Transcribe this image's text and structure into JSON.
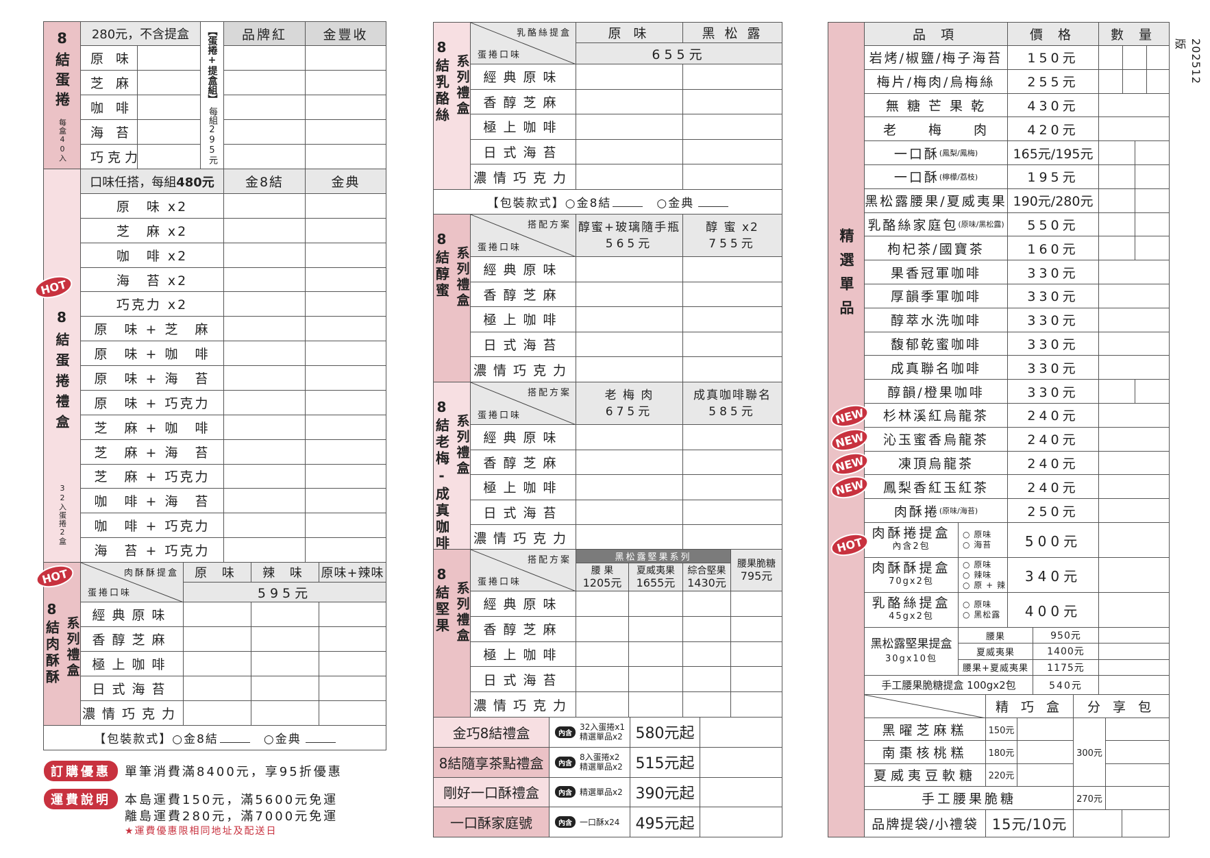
{
  "version": "202512版",
  "cookie_flavors": [
    "經典原味",
    "香醇芝麻",
    "極上咖啡",
    "日式海苔",
    "濃情巧克力"
  ],
  "packaging": {
    "label": "【包裝款式】",
    "option1": "○金8結",
    "option2": "○金典"
  },
  "left": {
    "egg_roll": {
      "label": "8結蛋捲",
      "label_sub": "每盒40入",
      "price_note": "280元，不含提盒",
      "set_label": "【蛋捲+提盒組】",
      "set_price": "每組295元",
      "columns": [
        "品牌紅",
        "金豐收"
      ],
      "flavors": [
        "原 味",
        "芝 麻",
        "咖 啡",
        "海 苔",
        "巧克力"
      ]
    },
    "gift_box": {
      "badge": "HOT",
      "label": "8結蛋捲禮盒",
      "label_sub": "32入蛋捲2盒",
      "header_text": "口味任搭，每組",
      "header_price": "480元",
      "columns": [
        "金8結",
        "金典"
      ],
      "combos": [
        "原　味 x2",
        "芝　麻 x2",
        "咖　啡 x2",
        "海　苔 x2",
        "巧克力 x2",
        "原　味 + 芝　麻",
        "原　味 + 咖　啡",
        "原　味 + 海　苔",
        "原　味 + 巧克力",
        "芝　麻 + 咖　啡",
        "芝　麻 + 海　苔",
        "芝　麻 + 巧克力",
        "咖　啡 + 海　苔",
        "咖　啡 + 巧克力",
        "海　苔 + 巧克力"
      ]
    },
    "meat_floss_series": {
      "badge": "HOT",
      "label": "8結肉酥酥",
      "label_series": "系列禮盒",
      "diag_top": "肉酥酥提盒",
      "diag_bottom": "蛋捲口味",
      "columns": [
        "原 味",
        "辣 味",
        "原味+辣味"
      ],
      "price": "595元"
    },
    "promos": [
      {
        "tag": "訂購優惠",
        "lines": [
          "單筆消費滿8400元，享95折優惠"
        ]
      },
      {
        "tag": "運費說明",
        "lines": [
          "本島運費150元，滿5600元免運",
          "離島運費280元，滿7000元免運"
        ]
      }
    ],
    "shipping_note": "★運費優惠限相同地址及配送日"
  },
  "middle": {
    "cheese": {
      "label": "8結乳酪絲",
      "label_series": "系列禮盒",
      "diag_top": "乳酪絲提盒",
      "diag_bottom": "蛋捲口味",
      "columns": [
        "原 味",
        "黑 松 露"
      ],
      "price": "655元"
    },
    "honey": {
      "label": "8結醇蜜",
      "label_series": "系列禮盒",
      "diag_top": "搭配方案",
      "diag_bottom": "蛋捲口味",
      "columns": [
        {
          "name": "醇蜜+玻璃隨手瓶",
          "price": "565元"
        },
        {
          "name": "醇 蜜 x2",
          "price": "755元"
        }
      ]
    },
    "plum_coffee": {
      "label": "8結老梅-成真咖啡",
      "label_series": "系列禮盒",
      "diag_top": "搭配方案",
      "diag_bottom": "蛋捲口味",
      "columns": [
        {
          "name": "老 梅 肉",
          "price": "675元"
        },
        {
          "name": "成真咖啡聯名",
          "price": "585元"
        }
      ]
    },
    "nut": {
      "label": "8結堅果",
      "label_series": "系列禮盒",
      "diag_top": "搭配方案",
      "diag_bottom": "蛋捲口味",
      "group": "黑松露堅果系列",
      "columns": [
        {
          "name": "腰 果",
          "price": "1205元"
        },
        {
          "name": "夏威夷果",
          "price": "1655元"
        },
        {
          "name": "綜合堅果",
          "price": "1430元"
        },
        {
          "name": "腰果脆糖",
          "price": "795元"
        }
      ]
    },
    "gift_sets": [
      {
        "name": "金巧8結禮盒",
        "tag": "內含",
        "contents": [
          "32入蛋捲x1",
          "精選單品x2"
        ],
        "price": "580元起"
      },
      {
        "name": "8結隨享茶點禮盒",
        "tag": "內含",
        "contents": [
          "8入蛋捲x2",
          "精選單品x2"
        ],
        "price": "515元起"
      },
      {
        "name": "剛好一口酥禮盒",
        "tag": "內含",
        "contents": [
          "精選單品x2"
        ],
        "price": "390元起"
      },
      {
        "name": "一口酥家庭號",
        "tag": "內含",
        "contents": [
          "一口酥x24"
        ],
        "price": "495元起"
      }
    ]
  },
  "right": {
    "label": "精選單品",
    "headers": [
      "品 項",
      "價 格",
      "數 量"
    ],
    "items": [
      {
        "name": "岩烤/椒鹽/梅子海苔",
        "price": "150元"
      },
      {
        "name": "梅片/梅肉/烏梅絲",
        "price": "255元"
      },
      {
        "name": "無 糖 芒 果 乾",
        "price": "430元"
      },
      {
        "name": "老　　梅　　肉",
        "price": "420元"
      },
      {
        "name": "一口酥",
        "note": "(鳳梨/鳳梅)",
        "price": "165元/195元"
      },
      {
        "name": "一口酥",
        "note": "(檸檬/荔枝)",
        "price": "195元"
      },
      {
        "name": "黑松露腰果/夏威夷果",
        "price": "190元/280元"
      },
      {
        "name": "乳酪絲家庭包",
        "note": "(原味/黑松露)",
        "price": "550元"
      },
      {
        "name": "枸杞茶/國寶茶",
        "price": "160元"
      },
      {
        "name": "果香冠軍咖啡",
        "price": "330元"
      },
      {
        "name": "厚韻季軍咖啡",
        "price": "330元"
      },
      {
        "name": "醇萃水洗咖啡",
        "price": "330元"
      },
      {
        "name": "馥郁乾蜜咖啡",
        "price": "330元"
      },
      {
        "name": "成真聯名咖啡",
        "price": "330元"
      },
      {
        "name": "醇韻/橙果咖啡",
        "price": "330元"
      },
      {
        "name": "杉林溪紅烏龍茶",
        "price": "240元",
        "badge": "NEW"
      },
      {
        "name": "沁玉蜜香烏龍茶",
        "price": "240元",
        "badge": "NEW"
      },
      {
        "name": "凍頂烏龍茶",
        "price": "240元",
        "badge": "NEW"
      },
      {
        "name": "鳳梨香紅玉紅茶",
        "price": "240元",
        "badge": "NEW"
      },
      {
        "name": "肉酥捲",
        "note": "(原味/海苔)",
        "price": "250元"
      }
    ],
    "boxes": [
      {
        "name": "肉酥捲提盒",
        "sub": "內含2包",
        "options": [
          "○ 原味",
          "○ 海苔"
        ],
        "price": "500元",
        "badge": "HOT"
      },
      {
        "name": "肉酥酥提盒",
        "sub": "70gx2包",
        "options": [
          "○ 原味",
          "○ 辣味",
          "○ 原 + 辣"
        ],
        "price": "340元"
      },
      {
        "name": "乳酪絲提盒",
        "sub": "45gx2包",
        "options": [
          "○ 原味",
          "○ 黑松露"
        ],
        "price": "400元"
      }
    ],
    "nut_box": {
      "name": "黑松露堅果提盒",
      "sub": "30gx10包",
      "variants": [
        {
          "name": "腰果",
          "price": "950元"
        },
        {
          "name": "夏威夷果",
          "price": "1400元"
        },
        {
          "name": "腰果+夏威夷果",
          "price": "1175元"
        }
      ]
    },
    "brittle_box": {
      "name": "手工腰果脆糖提盒 100gx2包",
      "price": "540元"
    },
    "cakes": {
      "columns": [
        "精 巧 盒",
        "分 享 包"
      ],
      "items": [
        {
          "name": "黑曜芝麻糕",
          "price": "150元"
        },
        {
          "name": "南棗核桃糕",
          "price": "180元"
        },
        {
          "name": "夏威夷豆軟糖",
          "price": "220元"
        }
      ],
      "share_price": "300元",
      "brittle": {
        "name": "手工腰果脆糖",
        "price": "270元"
      }
    },
    "bags": {
      "name": "品牌提袋/小禮袋",
      "price": "15元/10元"
    }
  },
  "colors": {
    "accent_red": "#c8323f",
    "label_pink_dark": "#ebc2c6",
    "label_pink_light": "#f7dfe2",
    "header_gray": "#e8e8e8"
  }
}
